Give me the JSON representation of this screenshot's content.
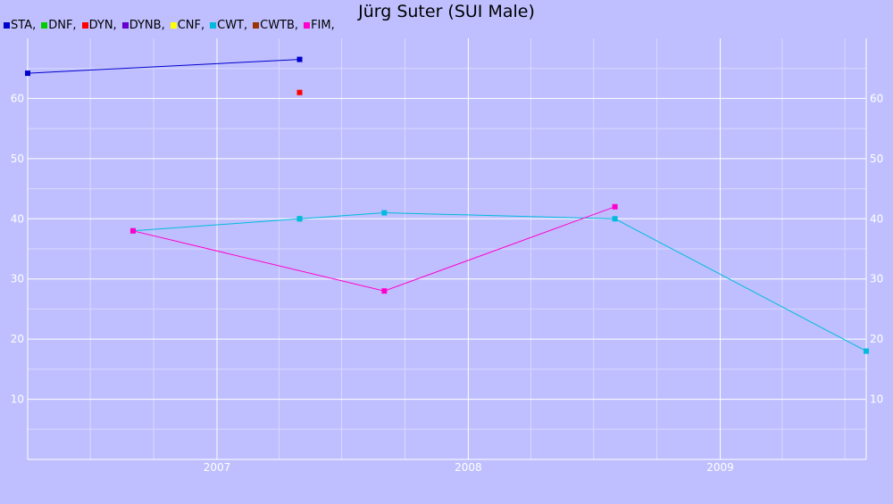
{
  "chart_data": {
    "type": "line",
    "title": "Jürg Suter (SUI Male)",
    "xlabel": "",
    "ylabel": "",
    "xlim": [
      "2006-04-01",
      "2009-08-01"
    ],
    "ylim": [
      0,
      70
    ],
    "x_ticks": [
      "2007",
      "2008",
      "2009"
    ],
    "y_ticks": [
      10,
      20,
      30,
      40,
      50,
      60
    ],
    "grid": true,
    "legend_position": "top-left",
    "colors": {
      "background": "#bfbfff",
      "grid_major": "#ffffff",
      "grid_minor": "#d9d9ff",
      "axis_text": "#ffffff"
    },
    "series": [
      {
        "name": "STA",
        "legend_label": "STA,",
        "color": "#0000cc",
        "points": [
          {
            "x": "2006-04-01",
            "y": 64.2
          },
          {
            "x": "2007-05-01",
            "y": 66.5
          }
        ]
      },
      {
        "name": "DNF",
        "legend_label": "DNF,",
        "color": "#00cc00",
        "points": [
          {
            "x": "2007-05-01",
            "y": 40
          }
        ]
      },
      {
        "name": "DYN",
        "legend_label": "DYN,",
        "color": "#ff0000",
        "points": [
          {
            "x": "2007-05-01",
            "y": 61
          }
        ]
      },
      {
        "name": "DYNB",
        "legend_label": "DYNB,",
        "color": "#6600cc",
        "points": []
      },
      {
        "name": "CNF",
        "legend_label": "CNF,",
        "color": "#ffff00",
        "points": []
      },
      {
        "name": "CWT",
        "legend_label": "CWT,",
        "color": "#00bbdd",
        "points": [
          {
            "x": "2006-09-01",
            "y": 38
          },
          {
            "x": "2007-05-01",
            "y": 40
          },
          {
            "x": "2007-09-01",
            "y": 41
          },
          {
            "x": "2008-08-01",
            "y": 40
          },
          {
            "x": "2009-08-01",
            "y": 18
          }
        ]
      },
      {
        "name": "CWTB",
        "legend_label": "CWTB,",
        "color": "#993300",
        "points": []
      },
      {
        "name": "FIM",
        "legend_label": "FIM,",
        "color": "#ff00cc",
        "points": [
          {
            "x": "2006-09-01",
            "y": 38
          },
          {
            "x": "2007-09-01",
            "y": 28
          },
          {
            "x": "2008-08-01",
            "y": 42
          }
        ]
      }
    ]
  }
}
